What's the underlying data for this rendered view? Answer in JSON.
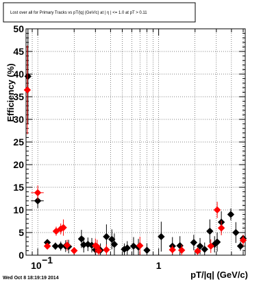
{
  "chart_data": {
    "type": "scatter",
    "title": "Lost over all for Primary Tracks vs pT/|q| (GeV/c) at |  η | <= 1.0 at pT > 0.11",
    "xlabel": "pT/|q| (GeV/c)",
    "ylabel": "Efficiency (%)",
    "xscale": "log",
    "xlim": [
      0.08,
      5.2
    ],
    "ylim": [
      0,
      50
    ],
    "yticks": [
      "0",
      "5",
      "10",
      "15",
      "20",
      "25",
      "30",
      "35",
      "40",
      "45",
      "50"
    ],
    "xticks": [
      "10^{-1}",
      "1"
    ],
    "grid": true,
    "timestamp": "Wed Oct  8 18:19:19 2014",
    "colors": {
      "black_series": "#000000",
      "red_series": "#ff0000"
    },
    "series": [
      {
        "marker": "diamond",
        "color": "#000000",
        "points": [
          {
            "x": 0.083,
            "y": 39.5,
            "err": 10.5,
            "xerr": 0.0033
          },
          {
            "x": 0.1,
            "y": 12.0,
            "err": 1.6,
            "xerr": 0.012
          },
          {
            "x": 0.12,
            "y": 2.8,
            "err": 0.6
          },
          {
            "x": 0.14,
            "y": 2.0,
            "err": 0.8
          },
          {
            "x": 0.155,
            "y": 2.0,
            "err": 1.0
          },
          {
            "x": 0.17,
            "y": 2.0,
            "err": 1.3
          },
          {
            "x": 0.18,
            "y": 1.9,
            "err": 1.5
          },
          {
            "x": 0.23,
            "y": 3.6,
            "err": 2.0
          },
          {
            "x": 0.24,
            "y": 2.3,
            "err": 1.7
          },
          {
            "x": 0.26,
            "y": 2.4,
            "err": 1.5
          },
          {
            "x": 0.28,
            "y": 2.2,
            "err": 1.6
          },
          {
            "x": 0.3,
            "y": 1.2,
            "err": 1.3
          },
          {
            "x": 0.33,
            "y": 1.1,
            "err": 1.5
          },
          {
            "x": 0.37,
            "y": 4.1,
            "err": 2.7
          },
          {
            "x": 0.41,
            "y": 3.5,
            "err": 2.2
          },
          {
            "x": 0.43,
            "y": 2.4,
            "err": 2.4
          },
          {
            "x": 0.52,
            "y": 1.3,
            "err": 1.3
          },
          {
            "x": 0.55,
            "y": 1.6,
            "err": 1.5
          },
          {
            "x": 0.62,
            "y": 2.0,
            "err": 2.0
          },
          {
            "x": 0.68,
            "y": 1.8,
            "err": 1.8
          },
          {
            "x": 0.8,
            "y": 1.1,
            "err": 1.5
          },
          {
            "x": 1.05,
            "y": 4.1,
            "err": 3.3
          },
          {
            "x": 1.3,
            "y": 2.0,
            "err": 2.0
          },
          {
            "x": 1.5,
            "y": 2.1,
            "err": 2.1
          },
          {
            "x": 1.95,
            "y": 2.8,
            "err": 1.7
          },
          {
            "x": 2.2,
            "y": 2.0,
            "err": 1.8
          },
          {
            "x": 2.4,
            "y": 1.3,
            "err": 1.5
          },
          {
            "x": 2.65,
            "y": 5.3,
            "err": 2.6
          },
          {
            "x": 2.9,
            "y": 2.4,
            "err": 1.8
          },
          {
            "x": 3.05,
            "y": 2.9,
            "err": 2.1
          },
          {
            "x": 3.3,
            "y": 7.3,
            "err": 2.4
          },
          {
            "x": 3.95,
            "y": 9.0,
            "err": 1.3
          },
          {
            "x": 4.35,
            "y": 5.0,
            "err": 2.3
          },
          {
            "x": 4.75,
            "y": 2.0,
            "err": 1.0
          },
          {
            "x": 5.0,
            "y": 3.7,
            "err": 0.8
          }
        ]
      },
      {
        "marker": "diamond",
        "color": "#ff0000",
        "points": [
          {
            "x": 0.082,
            "y": 36.5,
            "err": 9.8,
            "xerr": 0.0033
          },
          {
            "x": 0.1,
            "y": 13.8,
            "err": 1.6,
            "xerr": 0.012
          },
          {
            "x": 0.12,
            "y": 2.0,
            "err": 0.6
          },
          {
            "x": 0.142,
            "y": 5.3,
            "err": 1.0
          },
          {
            "x": 0.155,
            "y": 5.8,
            "err": 1.2
          },
          {
            "x": 0.163,
            "y": 6.1,
            "err": 1.8
          },
          {
            "x": 0.175,
            "y": 2.2,
            "err": 1.2
          },
          {
            "x": 0.2,
            "y": 1.0,
            "err": 0.8
          },
          {
            "x": 0.3,
            "y": 2.1,
            "err": 1.6
          },
          {
            "x": 0.31,
            "y": 1.9,
            "err": 1.5
          },
          {
            "x": 0.32,
            "y": 1.0,
            "err": 1.2
          },
          {
            "x": 0.37,
            "y": 1.2,
            "err": 1.2
          },
          {
            "x": 0.7,
            "y": 2.1,
            "err": 2.0
          },
          {
            "x": 1.3,
            "y": 1.2,
            "err": 1.0
          },
          {
            "x": 1.55,
            "y": 1.1,
            "err": 1.2
          },
          {
            "x": 2.1,
            "y": 0.9,
            "err": 0.8
          },
          {
            "x": 2.7,
            "y": 2.0,
            "err": 1.5
          },
          {
            "x": 3.05,
            "y": 10.0,
            "err": 1.8
          },
          {
            "x": 3.3,
            "y": 6.0,
            "err": 1.6
          },
          {
            "x": 5.0,
            "y": 3.3,
            "err": 1.2
          }
        ]
      }
    ]
  }
}
